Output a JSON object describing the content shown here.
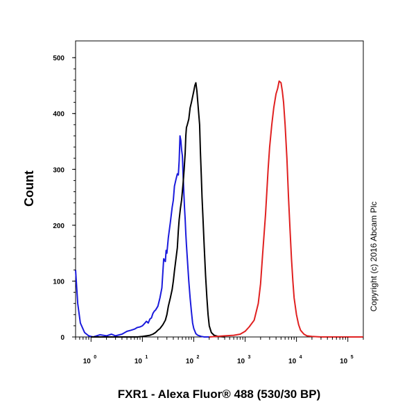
{
  "chart_data": {
    "type": "line",
    "xlabel": "FXR1 - Alexa Fluor® 488 (530/30 BP)",
    "ylabel": "Count",
    "xscale": "log",
    "xlim": [
      0.5,
      200000
    ],
    "ylim": [
      0,
      530
    ],
    "x_ticks": [
      {
        "base": "10",
        "exp": "0",
        "value": 1
      },
      {
        "base": "10",
        "exp": "1",
        "value": 10
      },
      {
        "base": "10",
        "exp": "2",
        "value": 100
      },
      {
        "base": "10",
        "exp": "3",
        "value": 1000
      },
      {
        "base": "10",
        "exp": "4",
        "value": 10000
      },
      {
        "base": "10",
        "exp": "5",
        "value": 100000
      }
    ],
    "y_ticks": [
      "0",
      "100",
      "200",
      "300",
      "400",
      "500"
    ],
    "grid": false,
    "annotation": "Copyright (c) 2016 Abcam Plc",
    "series": [
      {
        "color": "#1a1adc",
        "x": [
          0.5,
          0.55,
          0.62,
          0.75,
          0.9,
          1.1,
          1.5,
          2,
          2.5,
          3,
          4,
          5,
          6,
          7,
          8,
          9,
          10,
          11,
          12,
          13,
          14,
          15,
          16,
          17,
          18,
          20,
          22,
          24,
          26,
          28,
          29,
          30,
          32,
          35,
          38,
          40,
          42,
          45,
          48,
          50,
          52,
          54,
          56,
          58,
          60,
          62,
          64,
          66,
          68,
          70,
          72,
          75,
          78,
          80,
          85,
          90,
          95,
          100,
          110,
          120,
          140,
          160,
          200
        ],
        "values": [
          120,
          60,
          25,
          8,
          2,
          0,
          4,
          2,
          5,
          2,
          5,
          10,
          12,
          14,
          17,
          18,
          20,
          24,
          28,
          25,
          32,
          34,
          42,
          46,
          48,
          55,
          70,
          88,
          140,
          135,
          155,
          150,
          178,
          205,
          232,
          245,
          270,
          282,
          292,
          290,
          315,
          360,
          352,
          335,
          325,
          290,
          260,
          232,
          210,
          185,
          165,
          140,
          115,
          100,
          70,
          45,
          25,
          15,
          6,
          3,
          1,
          0,
          0
        ]
      },
      {
        "color": "#000000",
        "x": [
          1,
          5,
          8,
          10,
          12,
          14,
          16,
          18,
          20,
          22,
          25,
          28,
          30,
          32,
          35,
          38,
          40,
          42,
          45,
          48,
          50,
          52,
          55,
          58,
          60,
          62,
          65,
          68,
          70,
          72,
          75,
          80,
          85,
          90,
          95,
          100,
          105,
          110,
          115,
          120,
          125,
          130,
          135,
          140,
          145,
          150,
          160,
          170,
          180,
          190,
          200,
          220,
          250,
          300,
          400
        ],
        "values": [
          0,
          0,
          0,
          1,
          2,
          3,
          5,
          8,
          12,
          15,
          22,
          30,
          40,
          55,
          70,
          85,
          100,
          118,
          140,
          160,
          190,
          210,
          230,
          245,
          260,
          275,
          300,
          330,
          360,
          375,
          380,
          390,
          410,
          420,
          430,
          440,
          450,
          455,
          440,
          420,
          400,
          380,
          330,
          290,
          250,
          220,
          160,
          110,
          70,
          40,
          20,
          8,
          3,
          1,
          0
        ]
      },
      {
        "color": "#e02020",
        "x": [
          200,
          400,
          600,
          800,
          1000,
          1200,
          1500,
          1800,
          2000,
          2200,
          2500,
          2800,
          3000,
          3300,
          3600,
          4000,
          4300,
          4600,
          5000,
          5300,
          5600,
          6000,
          6500,
          7000,
          7500,
          8000,
          8500,
          9000,
          10000,
          11000,
          12000,
          14000,
          16000,
          20000,
          30000,
          100000,
          200000
        ],
        "values": [
          0,
          2,
          3,
          5,
          10,
          18,
          30,
          60,
          95,
          150,
          220,
          300,
          340,
          380,
          410,
          435,
          445,
          458,
          455,
          440,
          420,
          380,
          320,
          250,
          190,
          140,
          100,
          70,
          40,
          22,
          12,
          5,
          2,
          1,
          0,
          0,
          0
        ]
      }
    ]
  }
}
